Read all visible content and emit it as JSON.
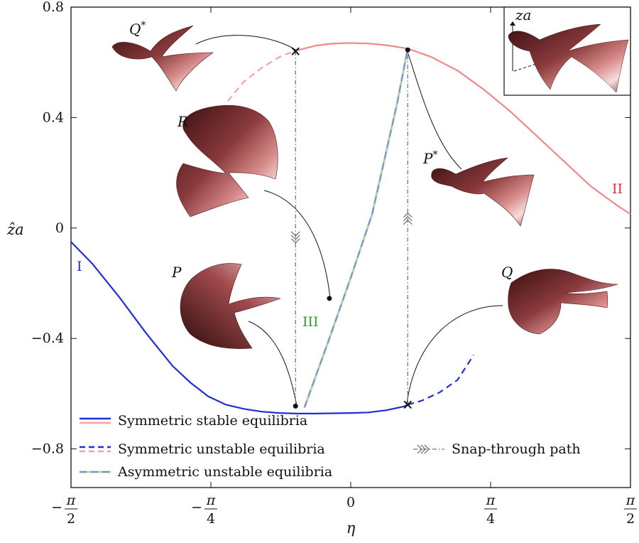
{
  "chart_data": {
    "type": "line",
    "xlabel": "η",
    "ylabel": "ẑa",
    "xlim": [
      -1.5708,
      1.5708
    ],
    "ylim": [
      -0.94,
      0.8
    ],
    "x_ticks": [
      {
        "value": -1.5708,
        "sign": "−",
        "num": "π",
        "den": "2"
      },
      {
        "value": -0.7854,
        "sign": "−",
        "num": "π",
        "den": "4"
      },
      {
        "value": 0,
        "label": "0"
      },
      {
        "value": 0.7854,
        "sign": "",
        "num": "π",
        "den": "4"
      },
      {
        "value": 1.5708,
        "sign": "",
        "num": "π",
        "den": "2"
      }
    ],
    "y_ticks": [
      {
        "value": 0.8,
        "label": "0.8"
      },
      {
        "value": 0.4,
        "label": "0.4"
      },
      {
        "value": 0,
        "label": "0"
      },
      {
        "value": -0.4,
        "label": "−0.4"
      },
      {
        "value": -0.8,
        "label": "−0.8"
      }
    ],
    "series": [
      {
        "name": "Symmetric stable equilibria",
        "label": "I",
        "color": "#1f2fd6",
        "style": "solid",
        "x": [
          -1.571,
          -1.45,
          -1.3,
          -1.15,
          -1.0,
          -0.9,
          -0.8,
          -0.7,
          -0.6,
          -0.5,
          -0.4,
          -0.3,
          -0.2,
          -0.1,
          0,
          0.1,
          0.2,
          0.3,
          0.32
        ],
        "y": [
          -0.05,
          -0.13,
          -0.25,
          -0.38,
          -0.5,
          -0.56,
          -0.61,
          -0.64,
          -0.655,
          -0.665,
          -0.67,
          -0.672,
          -0.672,
          -0.671,
          -0.67,
          -0.668,
          -0.66,
          -0.646,
          -0.64
        ]
      },
      {
        "name": "Symmetric unstable equilibria",
        "color": "#1f2fd6",
        "style": "dashed",
        "x": [
          0.32,
          0.4,
          0.5,
          0.6,
          0.69
        ],
        "y": [
          -0.64,
          -0.625,
          -0.595,
          -0.55,
          -0.46
        ]
      },
      {
        "name": "Symmetric stable equilibria",
        "label": "II",
        "color": "#f08a8a",
        "style": "solid",
        "x": [
          -0.32,
          -0.2,
          -0.1,
          0,
          0.1,
          0.2,
          0.32,
          0.45,
          0.6,
          0.75,
          0.9,
          1.05,
          1.2,
          1.35,
          1.5,
          1.571
        ],
        "y": [
          0.64,
          0.66,
          0.668,
          0.67,
          0.668,
          0.662,
          0.65,
          0.62,
          0.57,
          0.5,
          0.42,
          0.33,
          0.24,
          0.15,
          0.08,
          0.05
        ]
      },
      {
        "name": "Symmetric unstable equilibria",
        "color": "#f5a3a3",
        "style": "dashed",
        "x": [
          -0.69,
          -0.6,
          -0.5,
          -0.4,
          -0.32
        ],
        "y": [
          0.46,
          0.53,
          0.58,
          0.62,
          0.64
        ]
      },
      {
        "name": "Asymmetric unstable equilibria",
        "label": "III",
        "color": "#8c88d6",
        "style": "dashed",
        "x": [
          -0.26,
          -0.12,
          0,
          0.12,
          0.26,
          0.32
        ],
        "y": [
          -0.65,
          -0.4,
          -0.18,
          0.05,
          0.45,
          0.65
        ]
      }
    ],
    "snap_through": [
      {
        "x": -0.31,
        "y_from": 0.64,
        "y_to": -0.645,
        "direction": "down"
      },
      {
        "x": 0.32,
        "y_from": -0.64,
        "y_to": 0.645,
        "direction": "up"
      }
    ],
    "markers": [
      {
        "x": -0.31,
        "y": 0.64,
        "symbol": "x"
      },
      {
        "x": 0.32,
        "y": 0.645,
        "symbol": "dot"
      },
      {
        "x": -0.12,
        "y": -0.255,
        "symbol": "dot"
      },
      {
        "x": -0.31,
        "y": -0.645,
        "symbol": "dot"
      },
      {
        "x": 0.32,
        "y": -0.64,
        "symbol": "x"
      }
    ],
    "shape_labels": [
      {
        "label": "Q*"
      },
      {
        "label": "R"
      },
      {
        "label": "P*"
      },
      {
        "label": "P"
      },
      {
        "label": "Q"
      }
    ],
    "inset_label": "za",
    "legend": {
      "placement": "bottom-left",
      "entries": [
        {
          "label": "Symmetric stable equilibria",
          "colors": [
            "#1f2fd6",
            "#f5a3a3"
          ],
          "style": "solid"
        },
        {
          "label": "Symmetric unstable equilibria",
          "colors": [
            "#1f2fd6",
            "#f5a3a3"
          ],
          "style": "dashed"
        },
        {
          "label": "Asymmetric unstable equilibria",
          "colors": [
            "#8c88d6",
            "#a8d8a8"
          ],
          "style": "dashed"
        },
        {
          "label": "Snap-through path",
          "colors": [
            "#777777"
          ],
          "style": "dashdot"
        }
      ]
    }
  }
}
